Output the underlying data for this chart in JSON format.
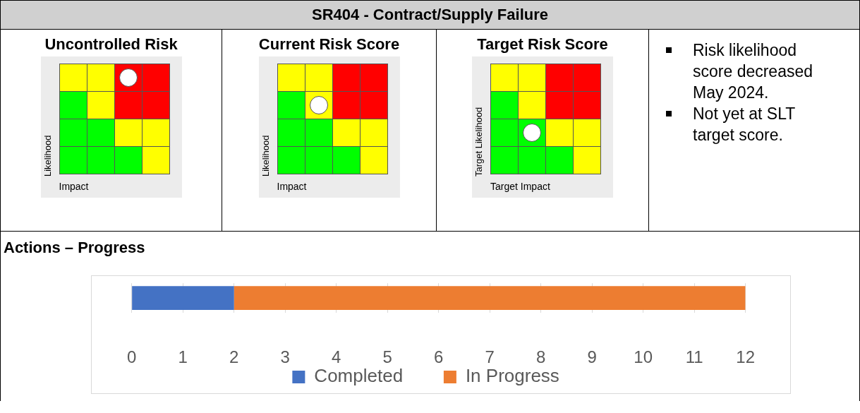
{
  "chart_data": [
    {
      "type": "other",
      "title": "SR404 - Contract/Supply Failure"
    },
    {
      "type": "other",
      "title": "Uncontrolled Risk",
      "xlabel": "Impact",
      "ylabel": "Likelihood"
    },
    {
      "type": "other",
      "title": "Current Risk Score",
      "xlabel": "Impact",
      "ylabel": "Likelihood"
    },
    {
      "type": "other",
      "title": "Target Risk Score",
      "xlabel": "Target Impact",
      "ylabel": "Target Likelihood"
    },
    {
      "type": "other",
      "annotations": [
        "Risk likelihood score decreased May 2024.",
        "Not yet at SLT target score."
      ]
    },
    {
      "type": "bar",
      "title": "Actions – Progress",
      "orientation": "horizontal",
      "stacked": true,
      "categories": [
        null
      ],
      "series": [
        {
          "name": "Completed",
          "color": "#4472c4",
          "values": [
            2
          ]
        },
        {
          "name": "In Progress",
          "color": "#ed7d31",
          "values": [
            10
          ]
        }
      ],
      "xlim": [
        0,
        12
      ],
      "xticks": [
        0,
        1,
        2,
        3,
        4,
        5,
        6,
        7,
        8,
        9,
        10,
        11,
        12
      ],
      "grid": "x",
      "legend": "bottom"
    }
  ]
}
